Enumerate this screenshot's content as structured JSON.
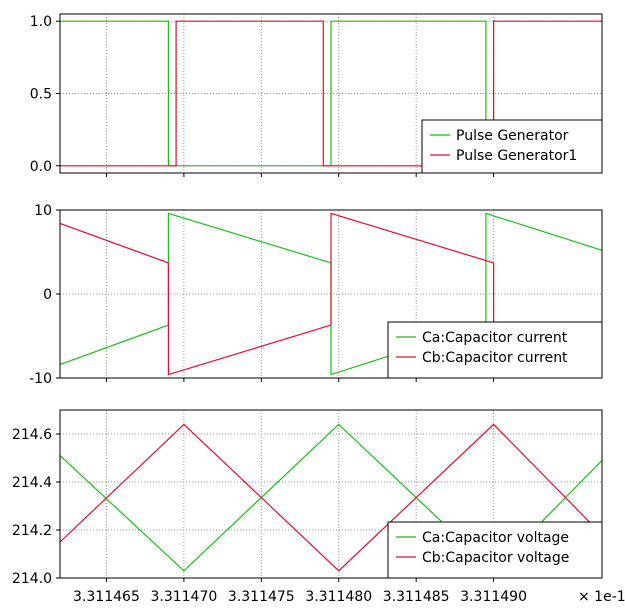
{
  "chart_data": {
    "type": "line",
    "x_multiplier_label": "× 1e-1",
    "xlim": [
      3.311462,
      3.311497
    ],
    "xticks": [
      3.311465,
      3.31147,
      3.311475,
      3.31148,
      3.311485,
      3.31149
    ],
    "xtick_labels": [
      "3.311465",
      "3.311470",
      "3.311475",
      "3.311480",
      "3.311485",
      "3.311490"
    ],
    "grid": true,
    "colors": {
      "green": "#22bb22",
      "red": "#dd1133"
    },
    "panels": [
      {
        "ylim": [
          -0.05,
          1.05
        ],
        "yticks": [
          0,
          0.5,
          1
        ],
        "ytick_labels": [
          "0.0",
          "0.5",
          "1.0"
        ],
        "legend_position": "bottom-right",
        "series": [
          {
            "name": "Pulse Generator",
            "color": "green",
            "x": [
              3.311462,
              3.311469,
              3.311469,
              3.3114795,
              3.3114795,
              3.3114895,
              3.3114895,
              3.311497
            ],
            "y": [
              1,
              1,
              0,
              0,
              1,
              1,
              0,
              0
            ]
          },
          {
            "name": "Pulse Generator1",
            "color": "red",
            "x": [
              3.311462,
              3.3114695,
              3.3114695,
              3.311479,
              3.311479,
              3.31149,
              3.31149,
              3.311497
            ],
            "y": [
              0,
              0,
              1,
              1,
              0,
              0,
              1,
              1
            ]
          }
        ]
      },
      {
        "ylim": [
          -10,
          10
        ],
        "yticks": [
          -10,
          0,
          10
        ],
        "ytick_labels": [
          "-10",
          "0",
          "10"
        ],
        "legend_position": "bottom-right",
        "series": [
          {
            "name": "Ca:Capacitor current",
            "color": "green",
            "x": [
              3.311462,
              3.311469,
              3.311469,
              3.3114795,
              3.3114795,
              3.3114895,
              3.3114895,
              3.311497
            ],
            "y": [
              -8.4,
              -3.7,
              9.6,
              3.7,
              -9.6,
              -3.7,
              9.6,
              5.2
            ]
          },
          {
            "name": "Cb:Capacitor current",
            "color": "red",
            "x": [
              3.311462,
              3.311469,
              3.311469,
              3.3114795,
              3.3114795,
              3.31149,
              3.31149,
              3.311497
            ],
            "y": [
              8.4,
              3.7,
              -9.6,
              -3.7,
              9.6,
              3.7,
              -9.6,
              -5.2
            ]
          }
        ]
      },
      {
        "ylim": [
          214.0,
          214.7
        ],
        "yticks": [
          214.0,
          214.2,
          214.4,
          214.6
        ],
        "ytick_labels": [
          "214.0",
          "214.2",
          "214.4",
          "214.6"
        ],
        "legend_position": "bottom-right",
        "series": [
          {
            "name": "Ca:Capacitor voltage",
            "color": "green",
            "x": [
              3.311462,
              3.31147,
              3.31148,
              3.31149,
              3.311497
            ],
            "y": [
              214.51,
              214.03,
              214.64,
              214.03,
              214.49
            ]
          },
          {
            "name": "Cb:Capacitor voltage",
            "color": "red",
            "x": [
              3.311462,
              3.31147,
              3.31148,
              3.31149,
              3.311497
            ],
            "y": [
              214.15,
              214.64,
              214.03,
              214.64,
              214.18
            ]
          }
        ]
      }
    ]
  }
}
